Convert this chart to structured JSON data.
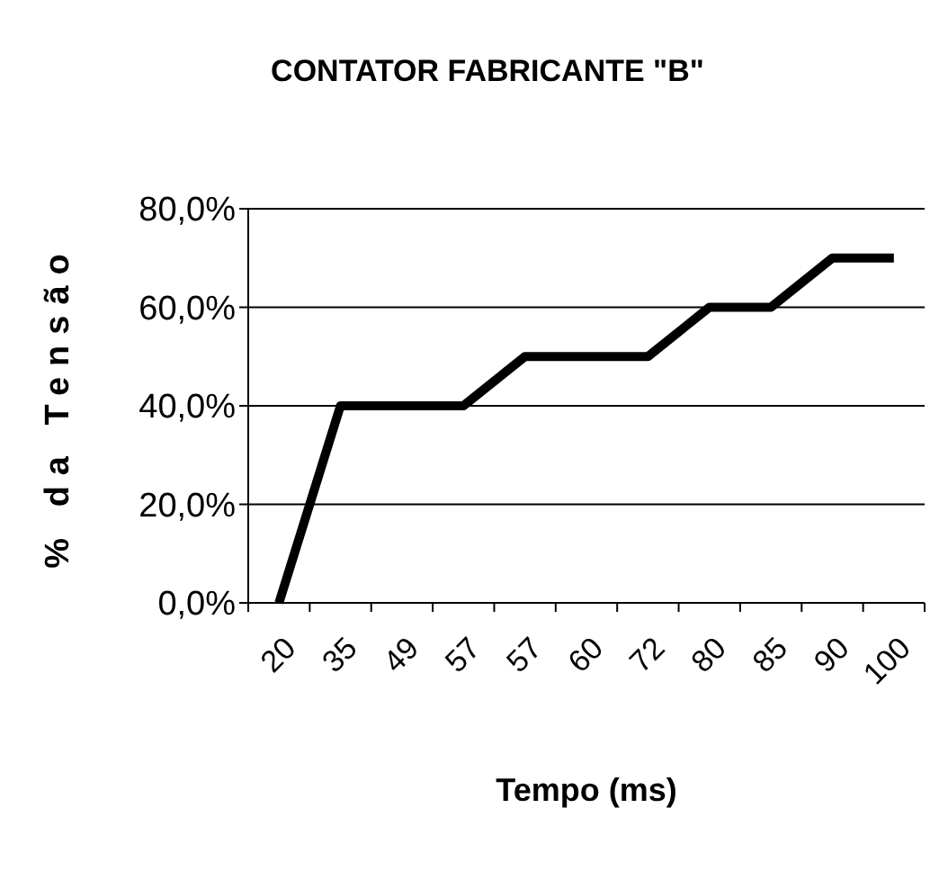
{
  "chart_data": {
    "type": "line",
    "title": "CONTATOR FABRICANTE \"B\"",
    "xlabel": "Tempo (ms)",
    "ylabel": "% da Tensão",
    "categories": [
      "20",
      "35",
      "49",
      "57",
      "57",
      "60",
      "72",
      "80",
      "85",
      "90",
      "100"
    ],
    "series": [
      {
        "color": "#000000",
        "values": [
          0,
          40,
          40,
          40,
          50,
          50,
          50,
          60,
          60,
          70,
          70
        ]
      }
    ],
    "ylim": [
      0,
      80
    ],
    "yticks": [
      {
        "value": 0,
        "label": "0,0%"
      },
      {
        "value": 20,
        "label": "20,0%"
      },
      {
        "value": 40,
        "label": "40,0%"
      },
      {
        "value": 60,
        "label": "60,0%"
      },
      {
        "value": 80,
        "label": "80,0%"
      }
    ],
    "grid": "y",
    "marker": "none",
    "line_style": "solid"
  }
}
